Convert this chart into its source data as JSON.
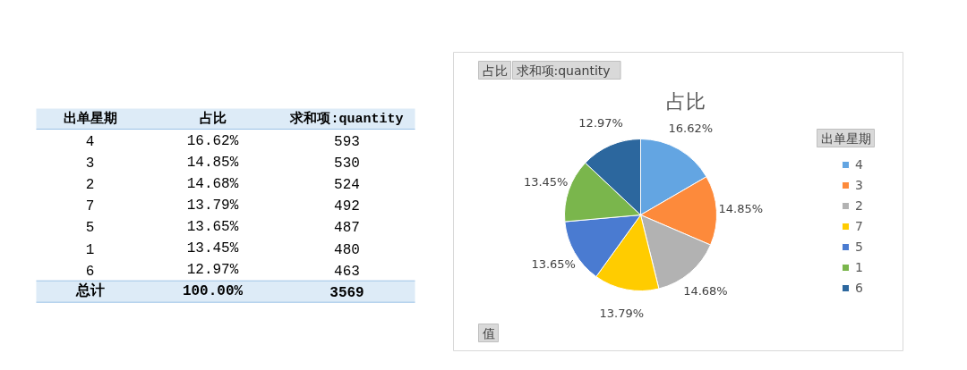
{
  "chart_data": [
    {
      "type": "other",
      "annotations": [
        "出单星期",
        "占比",
        "求和项:quantity",
        "4",
        "16.62%",
        "593",
        "3",
        "14.85%",
        "530",
        "2",
        "14.68%",
        "524",
        "7",
        "13.79%",
        "492",
        "5",
        "13.65%",
        "487",
        "1",
        "13.45%",
        "480",
        "6",
        "12.97%",
        "463",
        "总计",
        "100.00%",
        "3569"
      ]
    },
    {
      "type": "pie",
      "title": "占比",
      "categories": [
        "4",
        "3",
        "2",
        "7",
        "5",
        "1",
        "6"
      ],
      "values": [
        16.62,
        14.85,
        14.68,
        13.79,
        13.65,
        13.45,
        12.97
      ],
      "colors": [
        "#63a5e2",
        "#fd8a3b",
        "#b2b2b2",
        "#ffcc00",
        "#4a7bd1",
        "#7ab64c",
        "#2c679e"
      ],
      "value_labels": [
        "16.62%",
        "14.85%",
        "14.68%",
        "13.79%",
        "13.65%",
        "13.45%",
        "12.97%"
      ],
      "legend": "right",
      "legend_title": "出单星期",
      "annotations": [
        "占比",
        "求和项:quantity",
        "值"
      ]
    }
  ]
}
